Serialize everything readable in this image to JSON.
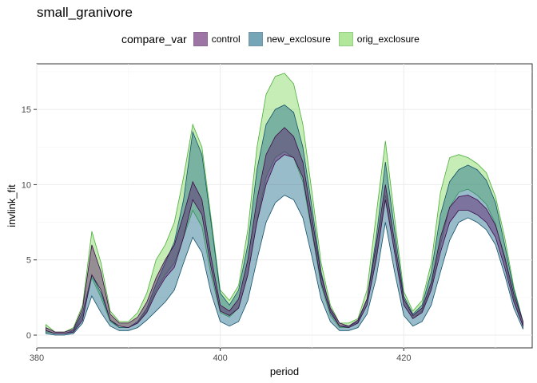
{
  "title": "small_granivore",
  "legend": {
    "title": "compare_var",
    "items": [
      {
        "label": "control",
        "fill": "#5b1a6b",
        "stroke": "#3c0a4a"
      },
      {
        "label": "new_exclosure",
        "fill": "#1c6a8a",
        "stroke": "#13506a"
      },
      {
        "label": "orig_exclosure",
        "fill": "#7fd65a",
        "stroke": "#4caf3a"
      }
    ]
  },
  "chart_data": {
    "type": "area",
    "title": "small_granivore",
    "xlabel": "period",
    "ylabel": "invlink_fit",
    "xlim": [
      380,
      434
    ],
    "ylim": [
      0,
      17.5
    ],
    "xticks": [
      380,
      400,
      420
    ],
    "yticks": [
      0,
      5,
      10,
      15
    ],
    "grid": true,
    "legend_position": "top",
    "x": [
      381,
      382,
      383,
      384,
      385,
      386,
      387,
      388,
      389,
      390,
      391,
      392,
      393,
      394,
      395,
      396,
      397,
      398,
      399,
      400,
      401,
      402,
      403,
      404,
      405,
      406,
      407,
      408,
      409,
      410,
      411,
      412,
      413,
      414,
      415,
      416,
      417,
      418,
      419,
      420,
      421,
      422,
      423,
      424,
      425,
      426,
      427,
      428,
      429,
      430,
      431,
      432,
      433
    ],
    "series": [
      {
        "name": "control",
        "lower": [
          0.3,
          0.1,
          0.1,
          0.2,
          1.0,
          4.0,
          3.0,
          1.0,
          0.6,
          0.5,
          0.8,
          1.5,
          2.8,
          3.8,
          4.5,
          6.5,
          9.0,
          8.0,
          4.5,
          1.6,
          1.3,
          1.8,
          4.0,
          7.5,
          10.0,
          11.5,
          12.0,
          11.8,
          10.5,
          7.0,
          3.5,
          1.5,
          0.6,
          0.5,
          0.8,
          2.0,
          5.0,
          9.0,
          5.5,
          2.0,
          1.1,
          1.5,
          3.0,
          5.5,
          7.5,
          8.3,
          8.3,
          8.0,
          7.5,
          6.5,
          4.5,
          2.2,
          0.6
        ],
        "upper": [
          0.5,
          0.2,
          0.2,
          0.4,
          1.8,
          6.0,
          4.2,
          1.4,
          0.8,
          0.8,
          1.2,
          2.2,
          3.8,
          5.0,
          6.0,
          8.0,
          10.2,
          9.0,
          5.2,
          2.0,
          1.6,
          2.4,
          5.0,
          9.0,
          12.0,
          13.2,
          13.8,
          13.2,
          11.5,
          7.8,
          4.0,
          1.8,
          0.8,
          0.6,
          1.0,
          2.4,
          6.0,
          10.0,
          6.2,
          2.4,
          1.3,
          1.8,
          3.5,
          6.5,
          8.5,
          9.2,
          9.3,
          9.0,
          8.4,
          7.3,
          5.2,
          2.7,
          0.9
        ]
      },
      {
        "name": "new_exclosure",
        "lower": [
          0.1,
          0.0,
          0.0,
          0.1,
          0.8,
          2.6,
          1.5,
          0.6,
          0.3,
          0.3,
          0.5,
          1.0,
          1.6,
          2.2,
          3.0,
          4.8,
          6.5,
          5.5,
          2.8,
          0.9,
          0.6,
          0.9,
          2.3,
          5.0,
          7.5,
          8.8,
          9.3,
          9.0,
          7.8,
          5.2,
          2.4,
          0.9,
          0.3,
          0.3,
          0.5,
          1.4,
          3.8,
          7.5,
          4.2,
          1.3,
          0.6,
          0.9,
          2.0,
          4.2,
          6.3,
          7.5,
          7.8,
          7.5,
          7.0,
          6.0,
          4.0,
          1.8,
          0.4
        ],
        "upper": [
          0.3,
          0.1,
          0.1,
          0.3,
          1.5,
          4.0,
          2.8,
          1.0,
          0.5,
          0.5,
          0.9,
          1.8,
          3.4,
          4.8,
          6.2,
          9.0,
          13.5,
          12.0,
          7.5,
          2.8,
          2.0,
          3.0,
          6.0,
          11.0,
          14.0,
          15.0,
          15.3,
          14.8,
          12.5,
          8.5,
          4.2,
          1.7,
          0.6,
          0.6,
          0.9,
          2.4,
          6.5,
          11.5,
          7.0,
          2.6,
          1.4,
          2.0,
          4.2,
          8.0,
          10.2,
          11.0,
          11.3,
          11.0,
          10.3,
          8.8,
          6.0,
          3.0,
          0.9
        ]
      },
      {
        "name": "orig_exclosure",
        "lower": [
          0.2,
          0.1,
          0.1,
          0.2,
          1.2,
          3.8,
          2.5,
          0.9,
          0.5,
          0.5,
          0.8,
          1.6,
          3.0,
          4.0,
          4.8,
          6.5,
          8.3,
          7.2,
          4.0,
          1.5,
          1.2,
          1.8,
          4.0,
          7.6,
          10.5,
          11.8,
          12.2,
          11.8,
          10.2,
          6.8,
          3.3,
          1.3,
          0.5,
          0.5,
          0.8,
          2.0,
          5.3,
          9.3,
          5.5,
          2.0,
          1.1,
          1.6,
          3.2,
          6.0,
          8.5,
          9.5,
          9.7,
          9.3,
          8.7,
          7.4,
          5.0,
          2.4,
          0.6
        ],
        "upper": [
          0.7,
          0.2,
          0.2,
          0.5,
          2.0,
          6.9,
          4.8,
          1.6,
          0.9,
          0.9,
          1.5,
          2.8,
          5.0,
          6.0,
          7.5,
          10.5,
          14.0,
          12.5,
          7.8,
          3.0,
          2.3,
          3.3,
          7.0,
          12.5,
          16.0,
          17.2,
          17.4,
          16.7,
          14.0,
          9.5,
          4.8,
          2.0,
          0.8,
          0.8,
          1.1,
          3.0,
          8.0,
          12.9,
          7.8,
          2.9,
          1.6,
          2.3,
          4.8,
          9.5,
          11.8,
          12.0,
          11.8,
          11.4,
          10.8,
          9.2,
          6.5,
          3.2,
          0.9
        ]
      }
    ]
  }
}
